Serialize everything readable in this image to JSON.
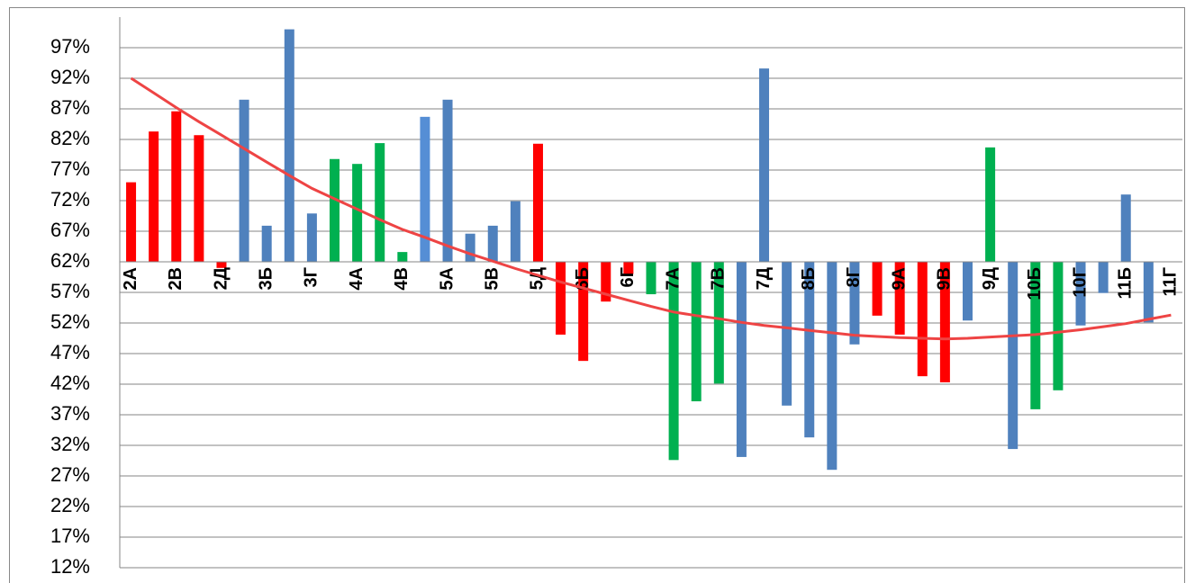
{
  "chart_data": {
    "type": "bar",
    "categories": [
      "2А",
      null,
      "2В",
      null,
      "2Д",
      null,
      "3Б",
      null,
      "3Г",
      null,
      "4А",
      null,
      "4В",
      null,
      "5А",
      null,
      "5В",
      null,
      "5Д",
      null,
      "6Б",
      null,
      "6Г",
      null,
      "7А",
      null,
      "7В",
      null,
      "7Д",
      null,
      "8Б",
      null,
      "8Г",
      null,
      "9А",
      null,
      "9В",
      null,
      "9Д",
      null,
      "10Б",
      null,
      "10Г",
      null,
      "11Б",
      null,
      "11Г"
    ],
    "values": [
      75,
      83.3,
      86.6,
      82.7,
      61,
      88.5,
      67.9,
      100,
      69.9,
      78.8,
      78,
      81.4,
      63.6,
      85.7,
      88.5,
      66.6,
      67.9,
      71.9,
      81.3,
      50.1,
      45.8,
      55.5,
      60,
      56.7,
      29.6,
      39.2,
      42.1,
      30.1,
      93.6,
      38.5,
      33.3,
      28,
      48.5,
      53.2,
      50.1,
      43.3,
      42.3,
      52.4,
      80.7,
      31.4,
      37.9,
      41,
      51.6,
      56.9,
      73,
      52.1,
      62
    ],
    "colors": [
      "#ff0000",
      "#ff0000",
      "#ff0000",
      "#ff0000",
      "#ff0000",
      "#4f81bd",
      "#4f81bd",
      "#4f81bd",
      "#4f81bd",
      "#00b050",
      "#00b050",
      "#00b050",
      "#00b050",
      "#558ed5",
      "#4f81bd",
      "#4f81bd",
      "#4f81bd",
      "#4f81bd",
      "#ff0000",
      "#ff0000",
      "#ff0000",
      "#ff0000",
      "#ff0000",
      "#00b050",
      "#00b050",
      "#00b050",
      "#00b050",
      "#4f81bd",
      "#4f81bd",
      "#4f81bd",
      "#4f81bd",
      "#4f81bd",
      "#4f81bd",
      "#ff0000",
      "#ff0000",
      "#ff0000",
      "#ff0000",
      "#4f81bd",
      "#00b050",
      "#4f81bd",
      "#00b050",
      "#00b050",
      "#4f81bd",
      "#4f81bd",
      "#4f81bd",
      "#4f81bd",
      "#4f81bd"
    ],
    "baseline": 62,
    "trendline": {
      "color": "#ee4444",
      "values": [
        92,
        89.6,
        87.2,
        84.9,
        82.7,
        80.5,
        78.3,
        76.1,
        74.0,
        72.3,
        70.6,
        68.9,
        67.3,
        66.0,
        64.6,
        63.3,
        62.1,
        60.9,
        59.8,
        58.7,
        57.7,
        56.7,
        55.7,
        54.7,
        53.8,
        53.2,
        52.7,
        52.1,
        51.6,
        51.2,
        50.8,
        50.4,
        50.0,
        49.8,
        49.6,
        49.5,
        49.4,
        49.5,
        49.7,
        49.9,
        50.1,
        50.5,
        50.9,
        51.4,
        51.9,
        52.6,
        53.3
      ]
    },
    "ylim": [
      12,
      102
    ],
    "yticks": [
      {
        "value": 12,
        "label": "12%"
      },
      {
        "value": 17,
        "label": "17%"
      },
      {
        "value": 22,
        "label": "22%"
      },
      {
        "value": 27,
        "label": "27%"
      },
      {
        "value": 32,
        "label": "32%"
      },
      {
        "value": 37,
        "label": "37%"
      },
      {
        "value": 42,
        "label": "42%"
      },
      {
        "value": 47,
        "label": "47%"
      },
      {
        "value": 52,
        "label": "52%"
      },
      {
        "value": 57,
        "label": "57%"
      },
      {
        "value": 62,
        "label": "62%"
      },
      {
        "value": 67,
        "label": "67%"
      },
      {
        "value": 72,
        "label": "72%"
      },
      {
        "value": 77,
        "label": "77%"
      },
      {
        "value": 82,
        "label": "82%"
      },
      {
        "value": 87,
        "label": "87%"
      },
      {
        "value": 92,
        "label": "92%"
      },
      {
        "value": 97,
        "label": "97%"
      }
    ],
    "grid": true
  }
}
